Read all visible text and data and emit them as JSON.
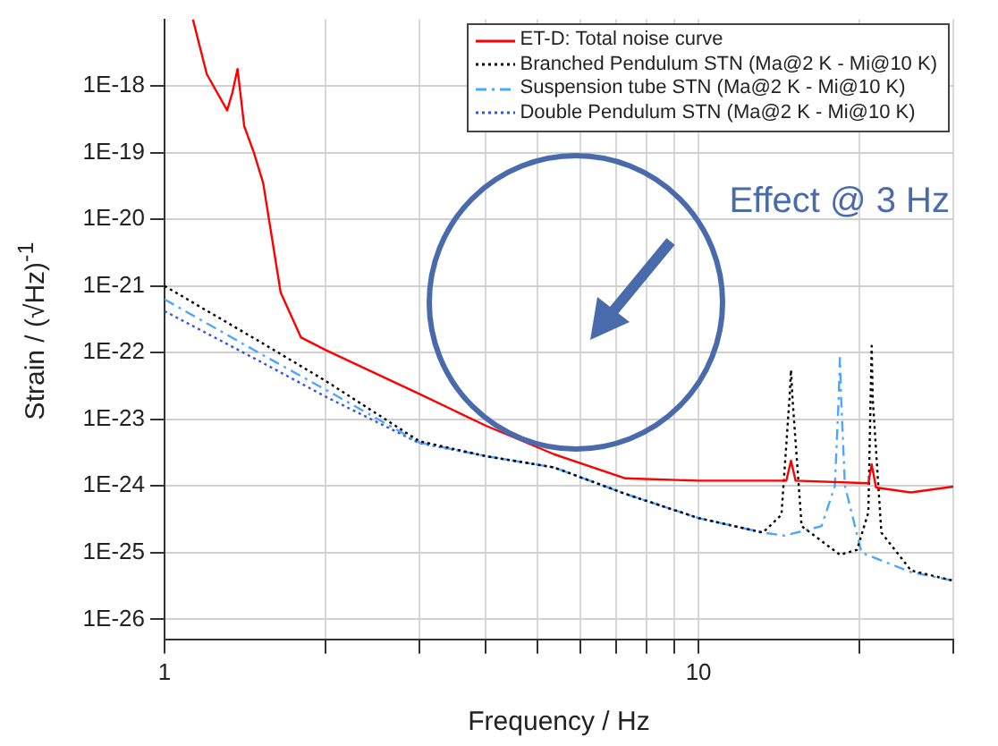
{
  "chart_data": {
    "type": "line",
    "xlabel": "Frequency / Hz",
    "ylabel": "Strain / (√Hz)$^{-1}$",
    "log": "xy",
    "grid": true,
    "legend": "top right",
    "marker": "none",
    "xlim": [
      1,
      30
    ],
    "ylim": [
      5e-27,
      1e-17
    ],
    "xticks": [
      1,
      {
        "value": 2,
        "label": null
      },
      {
        "value": 3,
        "label": null
      },
      {
        "value": 4,
        "label": null
      },
      {
        "value": 5,
        "label": null
      },
      {
        "value": 6,
        "label": null
      },
      {
        "value": 7,
        "label": null
      },
      {
        "value": 8,
        "label": null
      },
      {
        "value": 9,
        "label": null
      },
      10,
      {
        "value": 20,
        "label": null
      },
      {
        "value": 30,
        "label": null
      }
    ],
    "yticks": [
      {
        "value": 1e-26,
        "label": "1E-26"
      },
      {
        "value": 1e-25,
        "label": "1E-25"
      },
      {
        "value": 1e-24,
        "label": "1E-24"
      },
      {
        "value": 1e-23,
        "label": "1E-23"
      },
      {
        "value": 1e-22,
        "label": "1E-22"
      },
      {
        "value": 1e-21,
        "label": "1E-21"
      },
      {
        "value": 1e-20,
        "label": "1E-20"
      },
      {
        "value": 1e-19,
        "label": "1E-19"
      },
      {
        "value": 1e-18,
        "label": "1E-18"
      }
    ],
    "annotations": [
      "Effect @ 3 Hz"
    ],
    "series": [
      {
        "name": "ET-D: Total noise curve",
        "color": "#ff0000",
        "line_style": "solid",
        "x": [
          1.13,
          1.2,
          1.31,
          1.34,
          1.37,
          1.41,
          1.47,
          1.53,
          1.65,
          1.8,
          2,
          3,
          4,
          5.36,
          7.3,
          10,
          14.6,
          14.9,
          15.2,
          20.8,
          21.1,
          21.5,
          25,
          30
        ],
        "values": [
          1e-17,
          1.5e-18,
          4.3e-19,
          8e-19,
          1.8e-18,
          2.5e-19,
          1e-19,
          3.5e-20,
          8e-22,
          1.7e-22,
          1.1e-22,
          2.4e-23,
          8e-24,
          3e-24,
          1.3e-24,
          1.2e-24,
          1.2e-24,
          2.4e-24,
          1.2e-24,
          1.1e-24,
          2.1e-24,
          9.5e-25,
          8e-25,
          9.8e-25
        ]
      },
      {
        "name": "Branched Pendulum STN (Ma@2 K - Mi@10 K)",
        "color": "#000000",
        "line_style": "dotted",
        "x": [
          1,
          1.5,
          2,
          3,
          4,
          5.36,
          7.3,
          10,
          13.2,
          14.3,
          14.8,
          14.9,
          15,
          15.6,
          18.4,
          19.8,
          20.8,
          21,
          21.1,
          21.2,
          22,
          25,
          30
        ],
        "values": [
          1e-21,
          1.5e-22,
          3.8e-23,
          4.7e-24,
          2.8e-24,
          1.9e-24,
          7.6e-25,
          3.3e-25,
          2e-25,
          3.7e-25,
          2e-23,
          5.5e-23,
          2e-23,
          2.5e-25,
          9.3e-26,
          1.1e-25,
          4e-25,
          2e-23,
          1.26e-22,
          2e-23,
          2e-25,
          5.4e-26,
          3.8e-26
        ]
      },
      {
        "name": "Suspension tube STN (Ma@2 K - Mi@10 K)",
        "color": "#4da6ff",
        "line_style": "dashed",
        "x": [
          1,
          1.5,
          2,
          3,
          4,
          5.36,
          7.3,
          10,
          13.2,
          14.5,
          17,
          18,
          18.3,
          18.4,
          18.5,
          18.8,
          20.2,
          25,
          30
        ],
        "values": [
          6.3e-22,
          1e-22,
          2.8e-23,
          4.5e-24,
          2.8e-24,
          1.9e-24,
          7.6e-25,
          3.3e-25,
          2e-25,
          1.8e-25,
          2.5e-25,
          1e-24,
          2e-23,
          8.3e-23,
          2e-23,
          1e-24,
          1e-25,
          5.1e-26,
          3.8e-26
        ]
      },
      {
        "name": "Double Pendulum STN (Ma@2 K - Mi@10 K)",
        "color": "#3355dd",
        "line_style": "dotted",
        "x": [
          1,
          1.5,
          2,
          3,
          4,
          5.36,
          7.3,
          10,
          13.2
        ],
        "values": [
          4.2e-22,
          7.6e-23,
          2.2e-23,
          4.4e-24,
          2.8e-24,
          1.9e-24,
          7.6e-25,
          3.3e-25,
          2e-25
        ]
      }
    ]
  }
}
